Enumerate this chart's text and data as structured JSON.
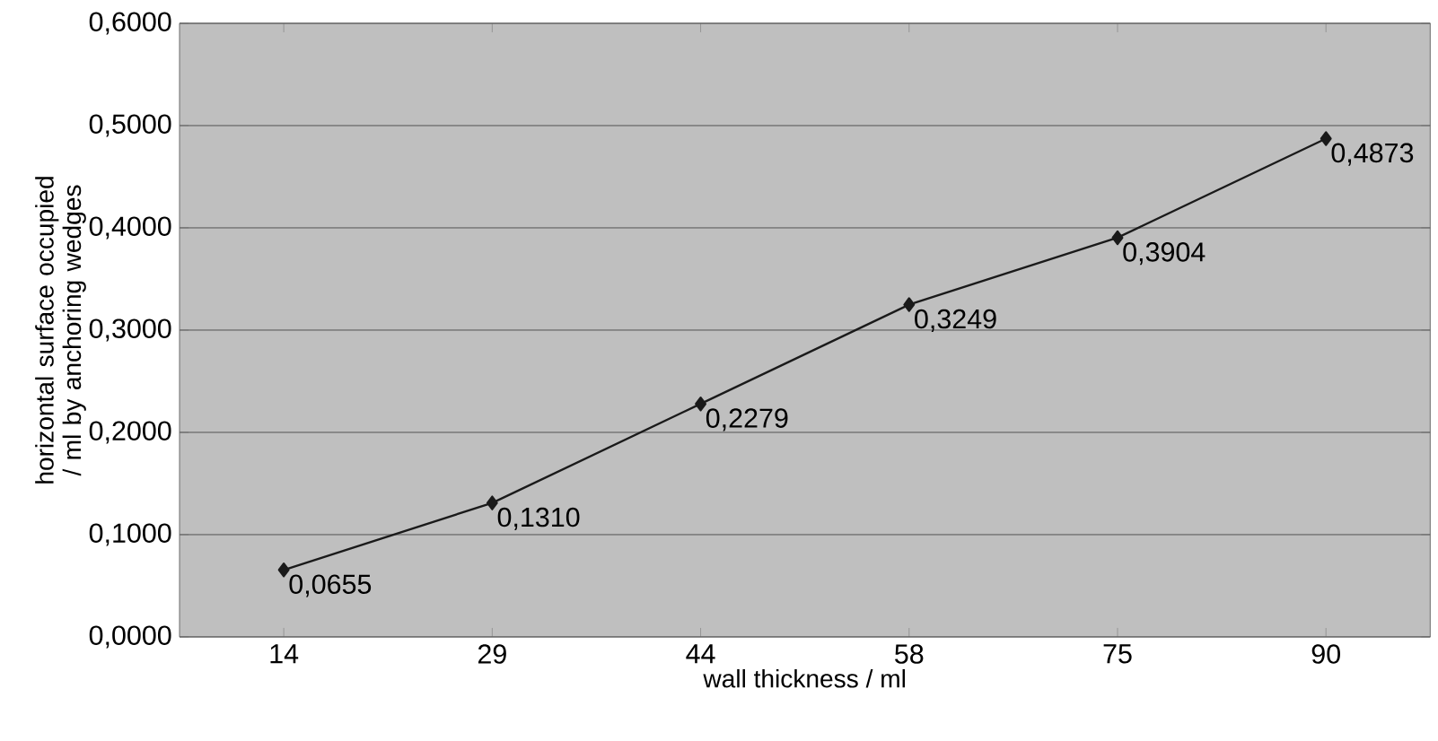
{
  "chart_data": {
    "type": "line",
    "xlabel": "wall thickness / ml",
    "ylabel": "horizontal surface occupied / ml by anchoring wedges",
    "categories": [
      "14",
      "29",
      "44",
      "58",
      "75",
      "90"
    ],
    "values": [
      0.0655,
      0.131,
      0.2279,
      0.3249,
      0.3904,
      0.4873
    ],
    "value_labels": [
      "0,0655",
      "0,1310",
      "0,2279",
      "0,3249",
      "0,3904",
      "0,4873"
    ],
    "color": "#1a1a1a",
    "marker": "diamond",
    "line_style": "solid",
    "grid": "y",
    "ylim": [
      0,
      0.6
    ],
    "yticks": [
      {
        "value": 0,
        "label": "0,0000"
      },
      {
        "value": 0.1,
        "label": "0,1000"
      },
      {
        "value": 0.2,
        "label": "0,2000"
      },
      {
        "value": 0.3,
        "label": "0,3000"
      },
      {
        "value": 0.4,
        "label": "0,4000"
      },
      {
        "value": 0.5,
        "label": "0,5000"
      },
      {
        "value": 0.6,
        "label": "0,6000"
      }
    ]
  }
}
